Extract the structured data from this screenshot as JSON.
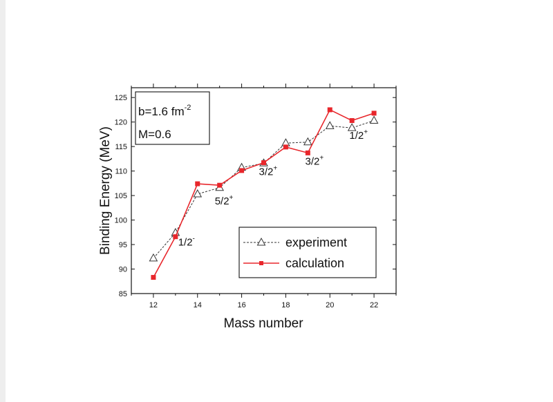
{
  "chart_data": {
    "type": "line",
    "xlabel": "Mass number",
    "ylabel": "Binding Energy (MeV)",
    "xlim": [
      11,
      23
    ],
    "ylim": [
      85,
      127
    ],
    "x_ticks": [
      12,
      14,
      16,
      18,
      20,
      22
    ],
    "y_ticks": [
      85,
      90,
      95,
      100,
      105,
      110,
      115,
      120,
      125
    ],
    "grid": false,
    "parameters_box": {
      "line1": "b=1.6 fm",
      "line1_superscript": "-2",
      "line2": "M=0.6"
    },
    "legend": {
      "placement": "bottom-right",
      "entries": [
        "experiment",
        "calculation"
      ]
    },
    "series": [
      {
        "name": "experiment",
        "color": "#333333",
        "marker": "open-triangle",
        "line_style": "dashed",
        "x": [
          12,
          13,
          14,
          15,
          16,
          17,
          18,
          19,
          20,
          21,
          22
        ],
        "values": [
          92.2,
          97.4,
          105.3,
          106.6,
          110.7,
          111.6,
          115.7,
          115.9,
          119.2,
          118.8,
          120.3
        ]
      },
      {
        "name": "calculation",
        "color": "#e8262b",
        "marker": "filled-square",
        "line_style": "solid",
        "x": [
          12,
          13,
          14,
          15,
          16,
          17,
          18,
          19,
          20,
          21,
          22
        ],
        "values": [
          88.3,
          96.6,
          107.4,
          107.1,
          110.1,
          111.7,
          114.9,
          113.7,
          122.5,
          120.3,
          121.8
        ]
      }
    ],
    "annotations": [
      {
        "base": "1/2",
        "sup": "-",
        "x": 13.5,
        "y": 94.8
      },
      {
        "base": "5/2",
        "sup": "+",
        "x": 15.2,
        "y": 103.2
      },
      {
        "base": "3/2",
        "sup": "+",
        "x": 17.2,
        "y": 109.2
      },
      {
        "base": "3/2",
        "sup": "+",
        "x": 19.3,
        "y": 111.3
      },
      {
        "base": "1/2",
        "sup": "+",
        "x": 21.3,
        "y": 116.6
      }
    ]
  }
}
